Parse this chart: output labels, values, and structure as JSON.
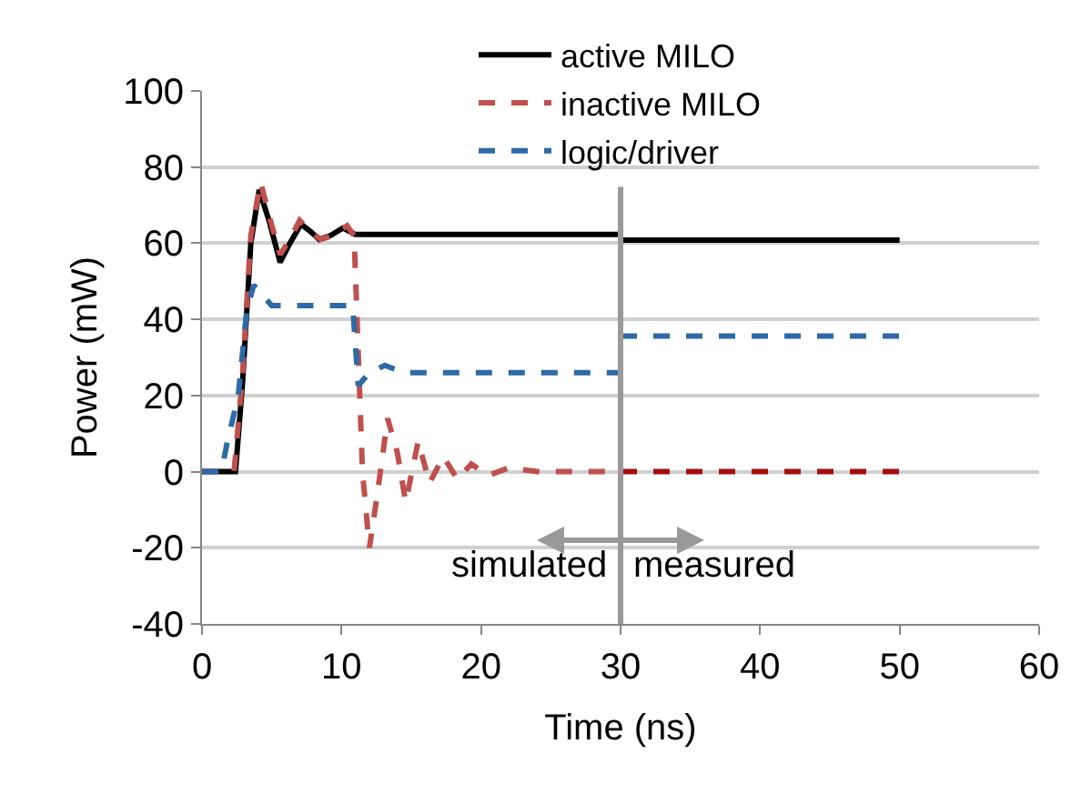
{
  "chart_data": {
    "type": "line",
    "xlabel": "Time (ns)",
    "ylabel": "Power (mW)",
    "xlim": [
      0,
      60
    ],
    "xticks": [
      0,
      10,
      20,
      30,
      40,
      50,
      60
    ],
    "ylim": [
      -40,
      100
    ],
    "yticks": [
      -40,
      -20,
      0,
      20,
      40,
      60,
      80,
      100
    ],
    "grid": "y",
    "legend": "top",
    "marker": "none",
    "series": [
      {
        "name": "active MILO",
        "color": "#000000",
        "line_style": "solid",
        "x": [
          0,
          2.4,
          2.9,
          3.5,
          4.1,
          4.8,
          5.6,
          6.3,
          7.1,
          7.8,
          8.4,
          9.2,
          10.1,
          11,
          20,
          30
        ],
        "values": [
          0,
          0,
          23,
          60,
          74,
          66,
          55,
          60,
          65,
          63,
          61,
          62,
          64,
          62.3,
          62.3,
          62.3
        ]
      },
      {
        "color": "#000000",
        "line_style": "solid",
        "x": [
          30,
          50
        ],
        "values": [
          60.8,
          60.8
        ]
      },
      {
        "name": "inactive MILO",
        "color": "#c0504d",
        "line_style": "dashed",
        "x": [
          0,
          2.3,
          2.9,
          3.5,
          4.2,
          4.9,
          5.6,
          6.3,
          7.0,
          7.8,
          8.5,
          9.4,
          10.4,
          10.9,
          11.5,
          12.0,
          12.6,
          13.3,
          14.0,
          14.6,
          15.5,
          16.3,
          17.3,
          18.3,
          19.3,
          20.5,
          22,
          24,
          30
        ],
        "values": [
          0,
          0,
          25,
          62,
          76,
          66,
          57,
          61,
          66,
          63,
          61,
          62,
          64.6,
          62,
          0,
          -20,
          -5,
          14,
          5,
          -8,
          8,
          -3,
          4,
          -2,
          2,
          -1,
          1,
          0,
          0
        ]
      },
      {
        "color": "#a50f0f",
        "line_style": "dashed",
        "x": [
          30,
          50
        ],
        "values": [
          0,
          0
        ]
      },
      {
        "name": "logic/driver",
        "color": "#2e6aa6",
        "line_style": "dashed",
        "x": [
          0,
          1.4,
          1.8,
          2.6,
          3.2,
          3.7,
          5.0,
          10.8,
          11.2,
          12.0,
          13.1,
          14.5,
          30
        ],
        "values": [
          0,
          0,
          7.6,
          20,
          42,
          49,
          43.6,
          43.6,
          22.6,
          26,
          27.9,
          26,
          26
        ]
      },
      {
        "color": "#2e6aa6",
        "line_style": "dashed",
        "x": [
          30,
          50
        ],
        "values": [
          35.6,
          35.6
        ]
      }
    ],
    "ref_lines": [
      {
        "axis": "x",
        "value": 30,
        "color": "#999999",
        "line_style": "solid"
      }
    ],
    "annotations": [
      "simulated",
      "measured"
    ]
  }
}
